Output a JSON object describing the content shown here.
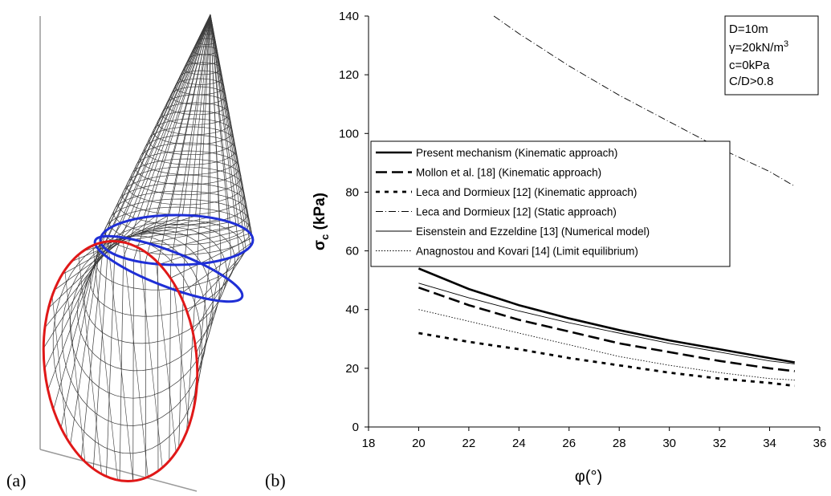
{
  "panels": {
    "left_tag": "(a)",
    "right_tag": "(b)"
  },
  "colors": {
    "mesh": "#3a3a3a",
    "cross_section_ellipses": "#1f2fd6",
    "face_circle": "#e01818",
    "curves": "#000000"
  },
  "parameters_box": {
    "lines": [
      {
        "text": "D=10m",
        "sup": ""
      },
      {
        "text": "γ=20kN/m",
        "sup": "3"
      },
      {
        "text": "c=0kPa",
        "sup": ""
      },
      {
        "text": "C/D>0.8",
        "sup": ""
      }
    ]
  },
  "chart_data": {
    "type": "line",
    "xlabel": "φ(°)",
    "ylabel": "σc (kPa)",
    "ylabel_main": "σ",
    "ylabel_sub": "c",
    "ylabel_unit": " (kPa)",
    "xlim": [
      18,
      36
    ],
    "ylim": [
      0,
      140
    ],
    "xticks": [
      18,
      20,
      22,
      24,
      26,
      28,
      30,
      32,
      34,
      36
    ],
    "yticks": [
      0,
      20,
      40,
      60,
      80,
      100,
      120,
      140
    ],
    "grid": false,
    "legend_position": "middle-left",
    "series": [
      {
        "name": "Present mechanism (Kinematic approach)",
        "style": "solid-thick",
        "x": [
          20,
          22,
          24,
          26,
          28,
          30,
          32,
          34,
          35
        ],
        "y": [
          54,
          47,
          41.5,
          37,
          33,
          29.5,
          26.5,
          23.5,
          22
        ]
      },
      {
        "name": "Mollon et al. [18] (Kinematic approach)",
        "style": "long-dash-thick",
        "x": [
          20,
          22,
          24,
          26,
          28,
          30,
          32,
          34,
          35
        ],
        "y": [
          47.5,
          41.5,
          36.5,
          32.5,
          28.5,
          25.5,
          22.5,
          20,
          19
        ]
      },
      {
        "name": "Leca and Dormieux [12] (Kinematic approach)",
        "style": "short-dash-thick",
        "x": [
          20,
          22,
          24,
          26,
          28,
          30,
          32,
          34,
          35
        ],
        "y": [
          32,
          29,
          26.5,
          23.5,
          21,
          18.5,
          16.5,
          15,
          14
        ]
      },
      {
        "name": "Leca and Dormieux [12] (Static approach)",
        "style": "dash-dot-thin",
        "x": [
          23,
          24,
          26,
          28,
          30,
          32,
          34,
          35
        ],
        "y": [
          140,
          134,
          123,
          113,
          104,
          95,
          87,
          82
        ]
      },
      {
        "name": "Eisenstein and Ezzeldine [13] (Numerical model)",
        "style": "solid-thin",
        "x": [
          20,
          22,
          24,
          26,
          28,
          30,
          32,
          34,
          35
        ],
        "y": [
          49,
          44,
          39.5,
          35.5,
          32,
          28.5,
          25.5,
          22.5,
          21.5
        ]
      },
      {
        "name": "Anagnostou and Kovari [14] (Limit equilibrium)",
        "style": "dotted-thin",
        "x": [
          20,
          22,
          24,
          26,
          28,
          30,
          32,
          34,
          35
        ],
        "y": [
          40,
          36,
          32,
          28,
          24,
          21,
          18.5,
          16.5,
          16
        ]
      }
    ]
  }
}
